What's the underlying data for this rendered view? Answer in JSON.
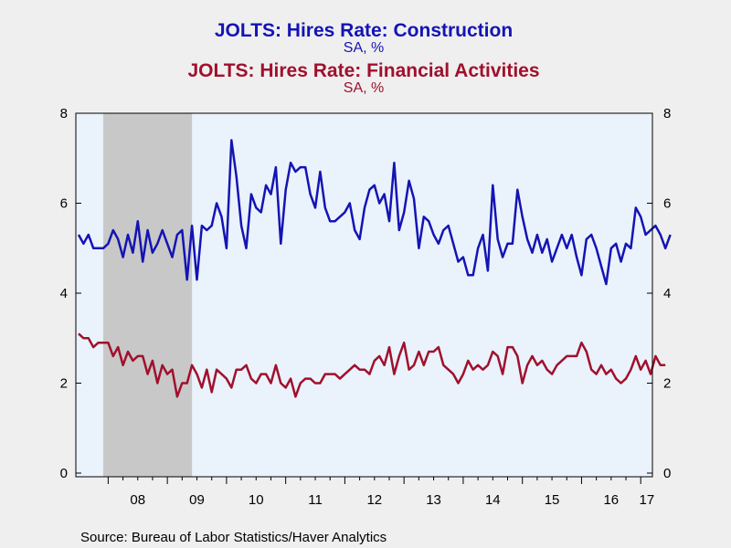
{
  "chart_data": {
    "type": "line",
    "titles": [
      {
        "title": "JOLTS: Hires Rate: Construction",
        "subtitle": "SA, %",
        "color": "#1414b4"
      },
      {
        "title": "JOLTS: Hires Rate: Financial Activities",
        "subtitle": "SA, %",
        "color": "#a0102d"
      }
    ],
    "source": "Source:  Bureau of Labor Statistics/Haver Analytics",
    "x_range": [
      "2007-07",
      "2017-03"
    ],
    "ylim": [
      0,
      8
    ],
    "y_ticks": [
      0,
      2,
      4,
      6,
      8
    ],
    "y_ticks_right": [
      0,
      2,
      4,
      6,
      8
    ],
    "x_tick_labels": [
      "08",
      "09",
      "10",
      "11",
      "12",
      "13",
      "14",
      "15",
      "16",
      "17"
    ],
    "x_tick_years": [
      2008,
      2009,
      2010,
      2011,
      2012,
      2013,
      2014,
      2015,
      2016,
      2017
    ],
    "recession": {
      "start": "2007-12",
      "end": "2009-06",
      "color": "#c8c8c8"
    },
    "plot_background": "#eaf2fb",
    "start": {
      "year": 2007,
      "month": 7
    },
    "series": [
      {
        "name": "JOLTS: Hires Rate: Construction",
        "color": "#1414b4",
        "values": [
          5.3,
          5.1,
          5.3,
          5.0,
          5.0,
          5.0,
          5.1,
          5.4,
          5.2,
          4.8,
          5.3,
          4.9,
          5.6,
          4.7,
          5.4,
          4.9,
          5.1,
          5.4,
          5.1,
          4.8,
          5.3,
          5.4,
          4.3,
          5.5,
          4.3,
          5.5,
          5.4,
          5.5,
          6.0,
          5.7,
          5.0,
          7.4,
          6.6,
          5.5,
          5.0,
          6.2,
          5.9,
          5.8,
          6.4,
          6.2,
          6.8,
          5.1,
          6.3,
          6.9,
          6.7,
          6.8,
          6.8,
          6.2,
          5.9,
          6.7,
          5.9,
          5.6,
          5.6,
          5.7,
          5.8,
          6.0,
          5.4,
          5.2,
          5.9,
          6.3,
          6.4,
          6.0,
          6.2,
          5.6,
          6.9,
          5.4,
          5.8,
          6.5,
          6.1,
          5.0,
          5.7,
          5.6,
          5.3,
          5.1,
          5.4,
          5.5,
          5.1,
          4.7,
          4.8,
          4.4,
          4.4,
          5.0,
          5.3,
          4.5,
          6.4,
          5.2,
          4.8,
          5.1,
          5.1,
          6.3,
          5.7,
          5.2,
          4.9,
          5.3,
          4.9,
          5.2,
          4.7,
          5.0,
          5.3,
          5.0,
          5.3,
          4.8,
          4.4,
          5.2,
          5.3,
          5.0,
          4.6,
          4.2,
          5.0,
          5.1,
          4.7,
          5.1,
          5.0,
          5.9,
          5.7,
          5.3,
          5.4,
          5.5,
          5.3,
          5.0,
          5.3
        ]
      },
      {
        "name": "JOLTS: Hires Rate: Financial Activities",
        "color": "#a0102d",
        "values": [
          3.1,
          3.0,
          3.0,
          2.8,
          2.9,
          2.9,
          2.9,
          2.6,
          2.8,
          2.4,
          2.7,
          2.5,
          2.6,
          2.6,
          2.2,
          2.5,
          2.0,
          2.4,
          2.2,
          2.3,
          1.7,
          2.0,
          2.0,
          2.4,
          2.2,
          1.9,
          2.3,
          1.8,
          2.3,
          2.2,
          2.1,
          1.9,
          2.3,
          2.3,
          2.4,
          2.1,
          2.0,
          2.2,
          2.2,
          2.0,
          2.4,
          2.0,
          1.9,
          2.1,
          1.7,
          2.0,
          2.1,
          2.1,
          2.0,
          2.0,
          2.2,
          2.2,
          2.2,
          2.1,
          2.2,
          2.3,
          2.4,
          2.3,
          2.3,
          2.2,
          2.5,
          2.6,
          2.4,
          2.8,
          2.2,
          2.6,
          2.9,
          2.3,
          2.4,
          2.7,
          2.4,
          2.7,
          2.7,
          2.8,
          2.4,
          2.3,
          2.2,
          2.0,
          2.2,
          2.5,
          2.3,
          2.4,
          2.3,
          2.4,
          2.7,
          2.6,
          2.2,
          2.8,
          2.8,
          2.6,
          2.0,
          2.4,
          2.6,
          2.4,
          2.5,
          2.3,
          2.2,
          2.4,
          2.5,
          2.6,
          2.6,
          2.6,
          2.9,
          2.7,
          2.3,
          2.2,
          2.4,
          2.2,
          2.3,
          2.1,
          2.0,
          2.1,
          2.3,
          2.6,
          2.3,
          2.5,
          2.2,
          2.6,
          2.4,
          2.4
        ]
      }
    ]
  }
}
